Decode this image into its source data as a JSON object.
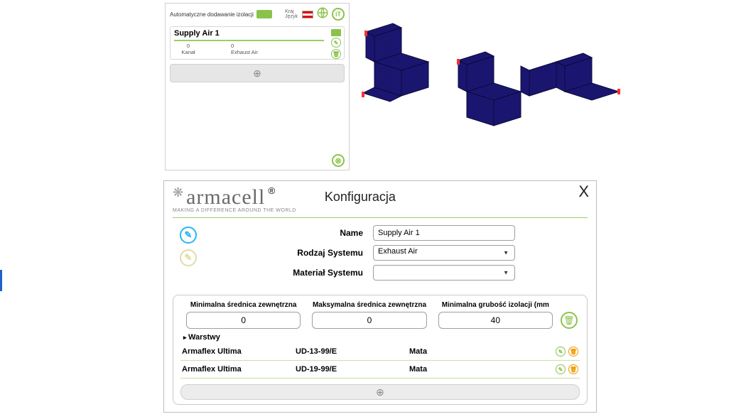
{
  "topPanel": {
    "autoLabel": "Automatyczne dodawanie izolacji",
    "krajLabel": "Kraj\nJęzyk",
    "itIcon": "iT",
    "card": {
      "title": "Supply Air 1",
      "sub1": "0",
      "sub1Label": "Kanał",
      "sub2": "0",
      "sub2Label": "Exhaust Air"
    },
    "addPlus": "⊕",
    "closeX": "⊗"
  },
  "duct": {
    "fill": "#1a1670",
    "stroke": "#0a0a3a"
  },
  "dialog": {
    "brand": "armacell",
    "brandSub": "MAKING A DIFFERENCE AROUND THE WORLD",
    "title": "Konfiguracja",
    "close": "X",
    "pencil": "✎",
    "ghost": "✎",
    "fields": {
      "nameLabel": "Name",
      "nameValue": "Supply Air 1",
      "systemTypeLabel": "Rodzaj Systemu",
      "systemTypeValue": "Exhaust Air",
      "systemMatLabel": "Materiał Systemu",
      "systemMatValue": ""
    },
    "dim": {
      "col1": "Minimalna średnica zewnętrzna",
      "col2": "Maksymalna średnica zewnętrzna",
      "col3": "Minimalna grubość izolacji (mm",
      "v1": "0",
      "v2": "0",
      "v3": "40"
    },
    "layersLabel": "Warstwy",
    "layerRows": [
      {
        "name": "Armaflex Ultima",
        "code": "UD-13-99/E",
        "form": "Mata"
      },
      {
        "name": "Armaflex Ultima",
        "code": "UD-19-99/E",
        "form": "Mata"
      }
    ],
    "addPlus": "⊕",
    "editIcon": "✎",
    "trashIcon": "🗑"
  }
}
